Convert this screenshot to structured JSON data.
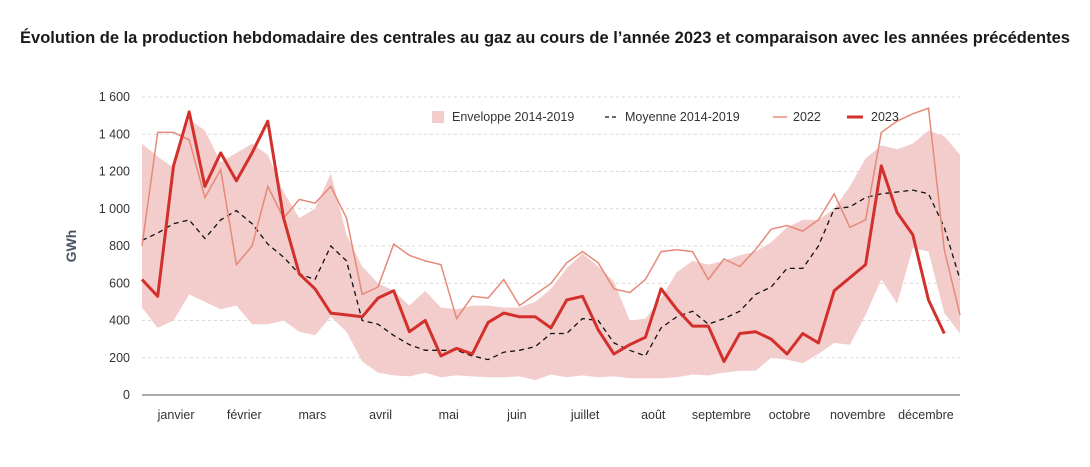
{
  "chart_data": {
    "type": "line",
    "title": "Évolution de la production hebdomadaire des centrales au gaz au cours de l’année 2023 et comparaison avec les années précédentes",
    "xlabel": "",
    "ylabel": "GWh",
    "x_unit": "semaine",
    "months": [
      "janvier",
      "février",
      "mars",
      "avril",
      "mai",
      "juin",
      "juillet",
      "août",
      "septembre",
      "octobre",
      "novembre",
      "décembre"
    ],
    "y_ticks": [
      0,
      200,
      400,
      600,
      800,
      1000,
      1200,
      1400,
      1600
    ],
    "y_tick_labels": [
      "0",
      "200",
      "400",
      "600",
      "800",
      "1 000",
      "1 200",
      "1 400",
      "1 600"
    ],
    "ylim": [
      0,
      1600
    ],
    "xlim": [
      1,
      53
    ],
    "grid": "horizontal dashed",
    "legend_position": "top-right",
    "colors": {
      "envelope": "#f3cccc",
      "mean": "#111111",
      "y2022": "#e58a78",
      "y2023": "#d3302c"
    },
    "series": [
      {
        "name": "Enveloppe 2014-2019",
        "kind": "band",
        "low": [
          470,
          360,
          400,
          540,
          500,
          460,
          480,
          380,
          380,
          400,
          340,
          320,
          420,
          340,
          180,
          120,
          105,
          100,
          120,
          95,
          105,
          100,
          95,
          95,
          100,
          80,
          110,
          95,
          105,
          95,
          100,
          90,
          90,
          90,
          95,
          110,
          105,
          120,
          130,
          130,
          200,
          190,
          170,
          220,
          280,
          270,
          430,
          620,
          490,
          790,
          770,
          440,
          330
        ],
        "high": [
          1350,
          1280,
          1220,
          1480,
          1420,
          1250,
          1300,
          1350,
          1290,
          1090,
          950,
          1000,
          1190,
          860,
          690,
          600,
          560,
          480,
          560,
          470,
          460,
          480,
          480,
          470,
          470,
          500,
          570,
          680,
          760,
          690,
          610,
          400,
          410,
          520,
          660,
          720,
          700,
          720,
          750,
          770,
          820,
          900,
          940,
          940,
          1000,
          1120,
          1270,
          1340,
          1320,
          1350,
          1420,
          1390,
          1290
        ]
      },
      {
        "name": "Moyenne  2014-2019",
        "kind": "line-dashed",
        "values": [
          830,
          870,
          920,
          940,
          840,
          940,
          990,
          920,
          810,
          740,
          650,
          620,
          800,
          720,
          400,
          380,
          320,
          270,
          240,
          240,
          240,
          210,
          190,
          230,
          240,
          260,
          330,
          330,
          410,
          400,
          280,
          240,
          210,
          360,
          420,
          450,
          380,
          410,
          450,
          540,
          580,
          680,
          680,
          800,
          1000,
          1010,
          1060,
          1080,
          1090,
          1100,
          1080,
          900,
          620
        ]
      },
      {
        "name": "2022",
        "kind": "line-thin",
        "values": [
          800,
          1410,
          1410,
          1370,
          1060,
          1210,
          700,
          800,
          1120,
          950,
          1050,
          1030,
          1120,
          950,
          540,
          580,
          810,
          750,
          720,
          700,
          410,
          530,
          520,
          620,
          480,
          540,
          600,
          710,
          770,
          710,
          570,
          550,
          620,
          770,
          780,
          770,
          620,
          730,
          690,
          780,
          890,
          910,
          880,
          940,
          1080,
          900,
          940,
          1410,
          1470,
          1510,
          1540,
          780,
          430
        ]
      },
      {
        "name": "2023",
        "kind": "line-thick",
        "values": [
          620,
          530,
          1230,
          1520,
          1120,
          1300,
          1150,
          1300,
          1470,
          950,
          650,
          570,
          440,
          430,
          420,
          520,
          560,
          340,
          400,
          210,
          250,
          220,
          390,
          440,
          420,
          420,
          360,
          510,
          530,
          350,
          220,
          270,
          310,
          570,
          460,
          370,
          370,
          180,
          330,
          340,
          300,
          220,
          330,
          280,
          560,
          630,
          700,
          1230,
          980,
          860,
          510,
          330
        ]
      }
    ]
  }
}
